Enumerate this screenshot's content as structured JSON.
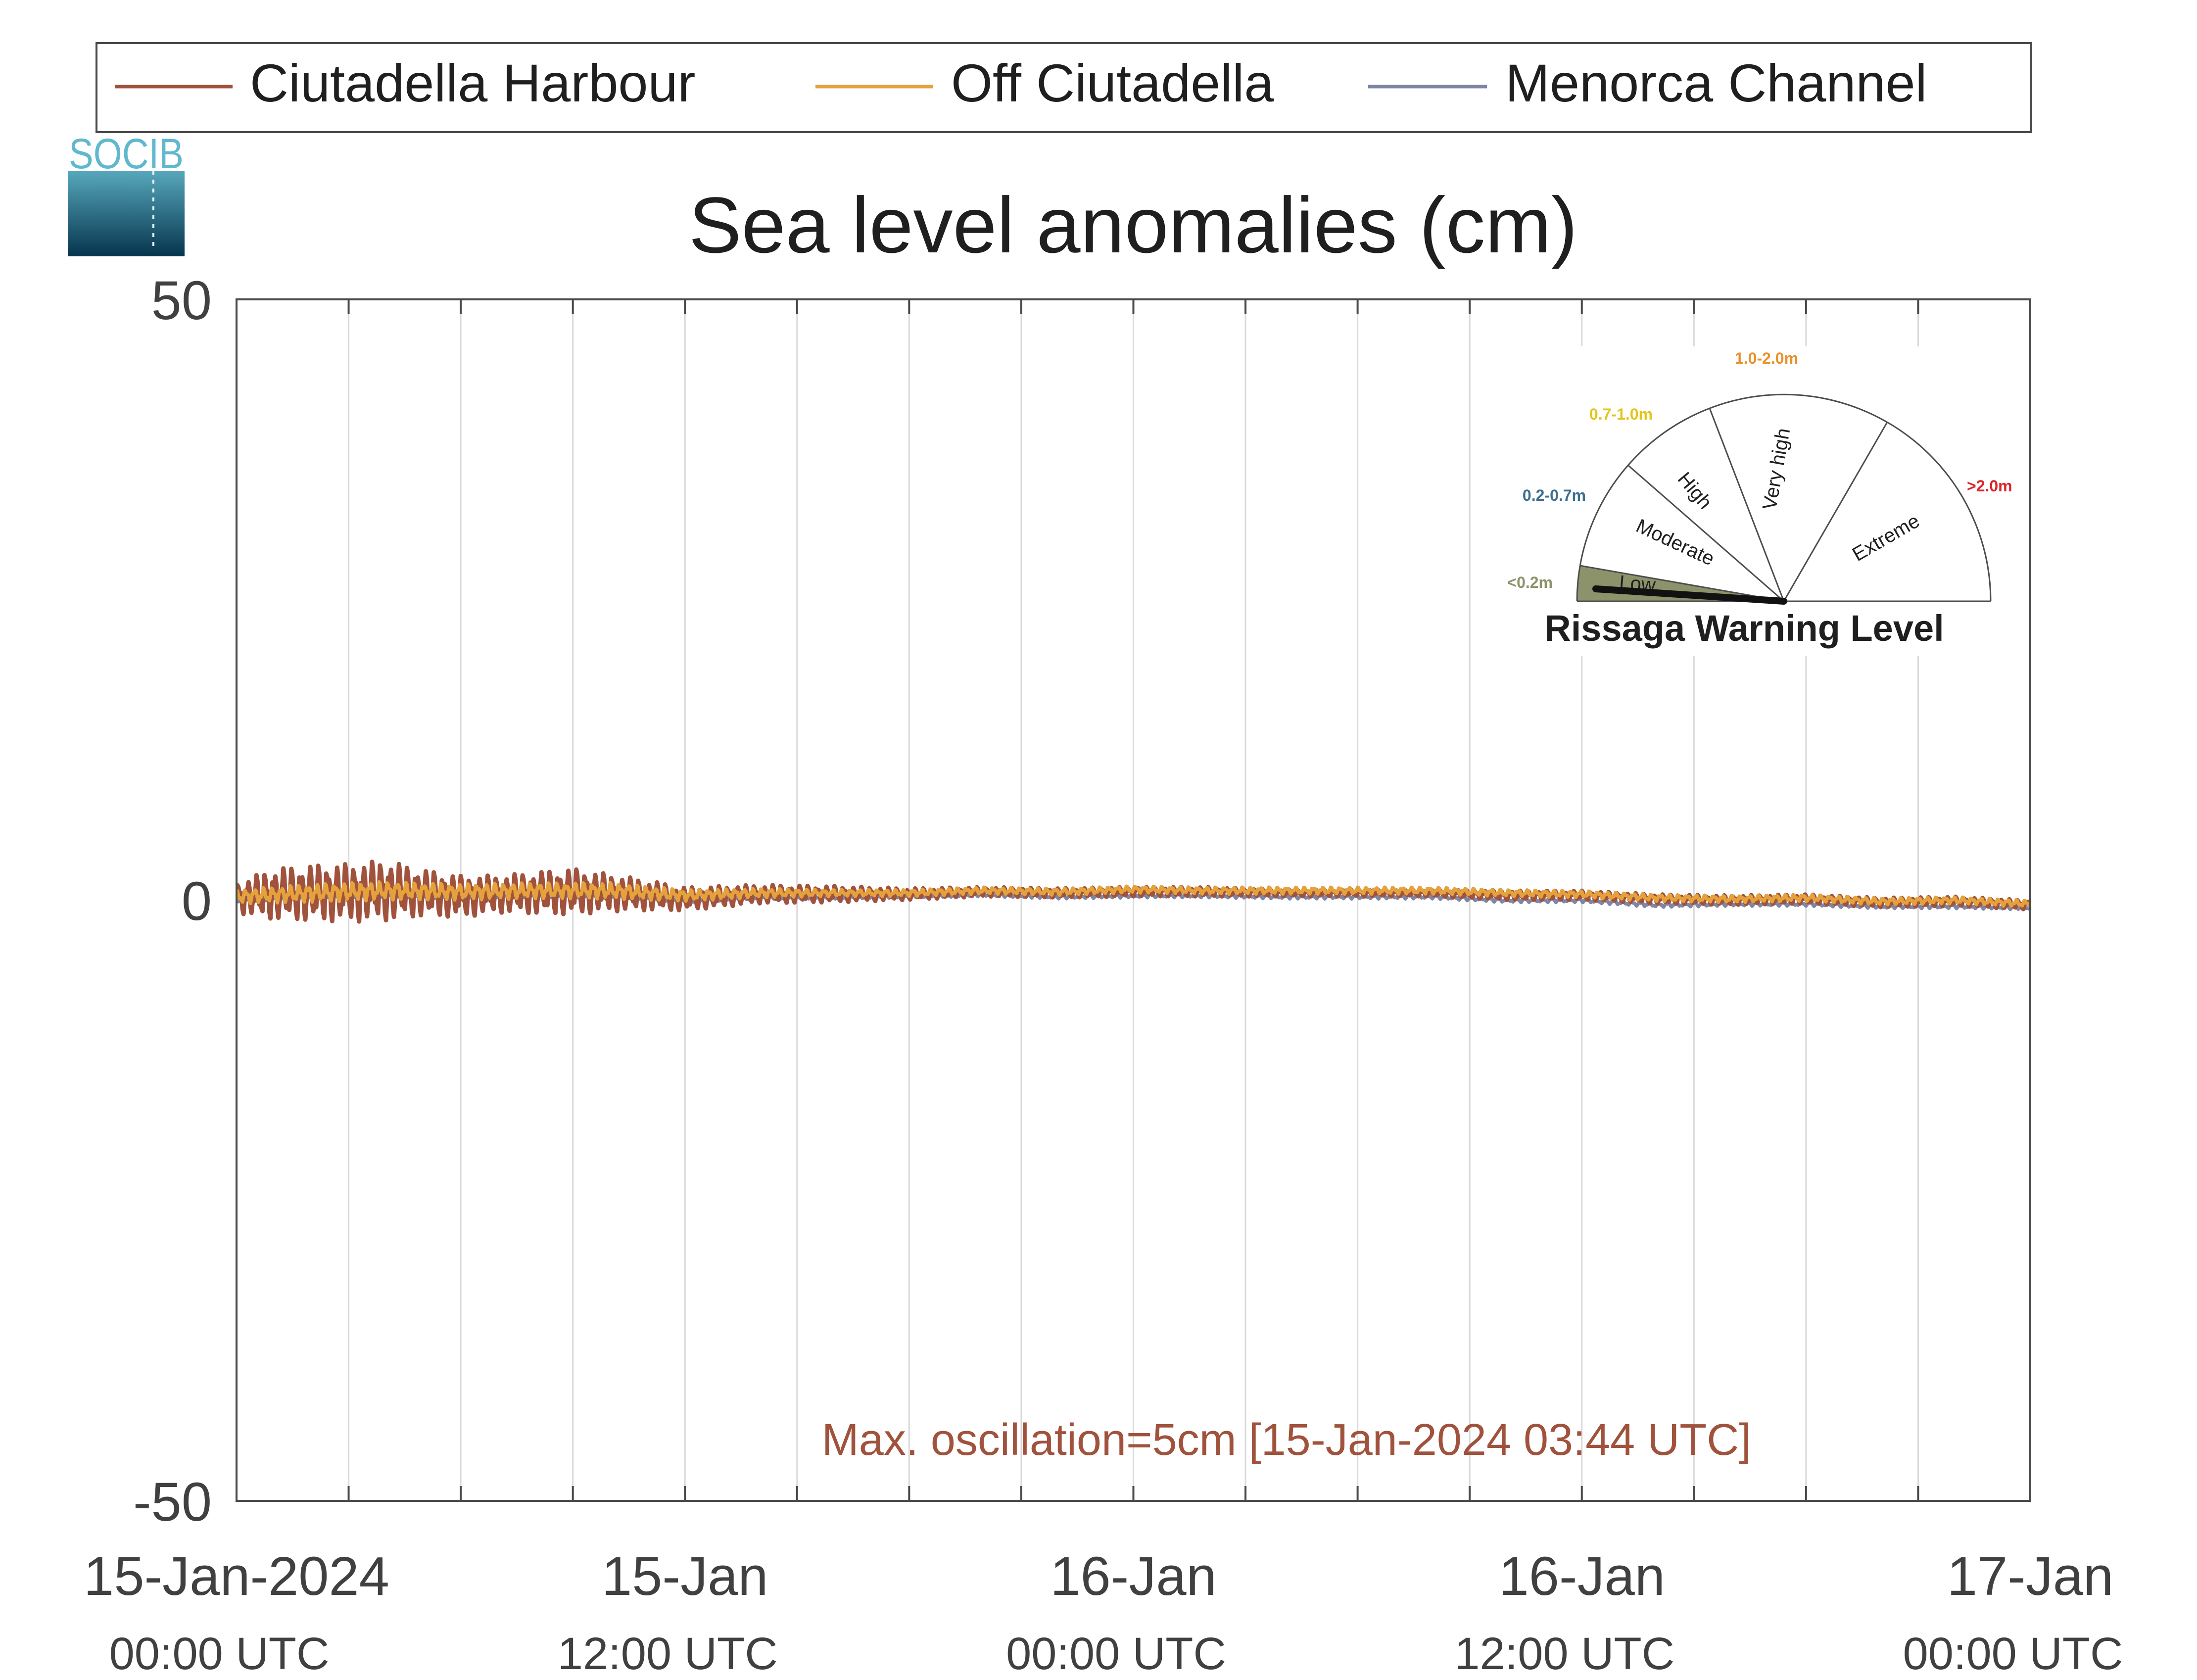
{
  "logo": {
    "text": "SOCIB"
  },
  "chart_data": {
    "type": "line",
    "title": "Sea level anomalies (cm)",
    "xlabel": "",
    "ylabel": "",
    "ylim": [
      -50,
      50
    ],
    "yticks": [
      -50,
      0,
      50
    ],
    "xlim_hours": [
      0,
      48
    ],
    "x_unit": "hours since 15-Jan-2024 00:00 UTC",
    "x_gridlines_hours": [
      3,
      6,
      9,
      12,
      15,
      18,
      21,
      24,
      27,
      30,
      33,
      36,
      39,
      42,
      45
    ],
    "xticks": [
      {
        "hours": 0,
        "date": "15-Jan-2024",
        "time": "00:00 UTC"
      },
      {
        "hours": 12,
        "date": "15-Jan",
        "time": "12:00 UTC"
      },
      {
        "hours": 24,
        "date": "16-Jan",
        "time": "00:00 UTC"
      },
      {
        "hours": 36,
        "date": "16-Jan",
        "time": "12:00 UTC"
      },
      {
        "hours": 48,
        "date": "17-Jan",
        "time": "00:00 UTC"
      }
    ],
    "grid": "vertical",
    "legend_position": "top",
    "series": [
      {
        "name": "Ciutadella Harbour",
        "color": "#a0523d",
        "envelope": {
          "x": [
            0,
            1,
            2,
            3,
            4,
            5,
            6,
            7,
            8,
            9,
            10,
            11,
            12,
            14,
            16,
            18,
            20,
            22,
            24,
            26,
            28,
            30,
            32,
            34,
            36,
            38,
            40,
            42,
            44,
            46,
            48
          ],
          "mean": [
            0.2,
            0.5,
            0.6,
            0.6,
            0.8,
            0.6,
            0.3,
            0.5,
            0.6,
            0.7,
            0.6,
            0.4,
            0.1,
            0.5,
            0.5,
            0.5,
            0.7,
            0.6,
            0.7,
            0.7,
            0.6,
            0.6,
            0.6,
            0.4,
            0.4,
            0.1,
            0.0,
            0.1,
            -0.2,
            -0.1,
            -0.4
          ],
          "amplitude": [
            1.3,
            2.2,
            2.4,
            2.5,
            2.6,
            2.0,
            1.8,
            1.6,
            1.8,
            2.0,
            1.6,
            1.3,
            1.0,
            0.8,
            0.7,
            0.5,
            0.4,
            0.4,
            0.4,
            0.4,
            0.3,
            0.3,
            0.3,
            0.4,
            0.4,
            0.4,
            0.4,
            0.4,
            0.4,
            0.4,
            0.4
          ]
        }
      },
      {
        "name": "Off Ciutadella",
        "color": "#e5a13c",
        "envelope": {
          "x": [
            0,
            2,
            4,
            6,
            8,
            10,
            12,
            14,
            16,
            18,
            20,
            22,
            24,
            26,
            28,
            30,
            32,
            34,
            36,
            38,
            40,
            42,
            44,
            46,
            48
          ],
          "mean": [
            0.3,
            0.6,
            0.8,
            0.7,
            0.8,
            0.8,
            0.4,
            0.6,
            0.6,
            0.6,
            0.8,
            0.7,
            0.9,
            0.8,
            0.8,
            0.8,
            0.8,
            0.6,
            0.5,
            0.2,
            0.1,
            0.2,
            -0.1,
            0.0,
            -0.3
          ],
          "amplitude": [
            0.6,
            0.8,
            0.8,
            0.7,
            0.7,
            0.7,
            0.5,
            0.4,
            0.3,
            0.3,
            0.3,
            0.3,
            0.3,
            0.3,
            0.3,
            0.3,
            0.3,
            0.3,
            0.3,
            0.3,
            0.3,
            0.3,
            0.3,
            0.3,
            0.3
          ]
        }
      },
      {
        "name": "Menorca Channel",
        "color": "#7f86a5",
        "envelope": {
          "x": [
            0,
            2,
            4,
            6,
            8,
            10,
            12,
            14,
            16,
            18,
            20,
            22,
            24,
            26,
            28,
            30,
            32,
            34,
            36,
            38,
            40,
            42,
            44,
            46,
            48
          ],
          "mean": [
            0.1,
            0.4,
            0.5,
            0.4,
            0.5,
            0.5,
            0.1,
            0.3,
            0.3,
            0.4,
            0.5,
            0.3,
            0.4,
            0.4,
            0.3,
            0.3,
            0.3,
            0.0,
            0.0,
            -0.4,
            -0.3,
            -0.3,
            -0.5,
            -0.5,
            -0.6
          ],
          "amplitude": [
            0.3,
            0.3,
            0.3,
            0.3,
            0.3,
            0.3,
            0.3,
            0.2,
            0.2,
            0.2,
            0.2,
            0.2,
            0.2,
            0.2,
            0.2,
            0.2,
            0.2,
            0.2,
            0.2,
            0.2,
            0.2,
            0.2,
            0.2,
            0.2,
            0.2
          ]
        }
      }
    ],
    "annotation": {
      "text": "Max. oscillation=5cm [15-Jan-2024 03:44 UTC]",
      "color": "#a0523d"
    }
  },
  "warning_gauge": {
    "title": "Rissaga Warning Level",
    "current_level": "Low",
    "levels": [
      {
        "name": "Low",
        "range": "<0.2m",
        "color": "#8c936a"
      },
      {
        "name": "Moderate",
        "range": "0.2-0.7m",
        "color": "#3d6f8e"
      },
      {
        "name": "High",
        "range": "0.7-1.0m",
        "color": "#e3c51a"
      },
      {
        "name": "Very high",
        "range": "1.0-2.0m",
        "color": "#e8902a"
      },
      {
        "name": "Extreme",
        "range": ">2.0m",
        "color": "#d8262a"
      }
    ]
  }
}
